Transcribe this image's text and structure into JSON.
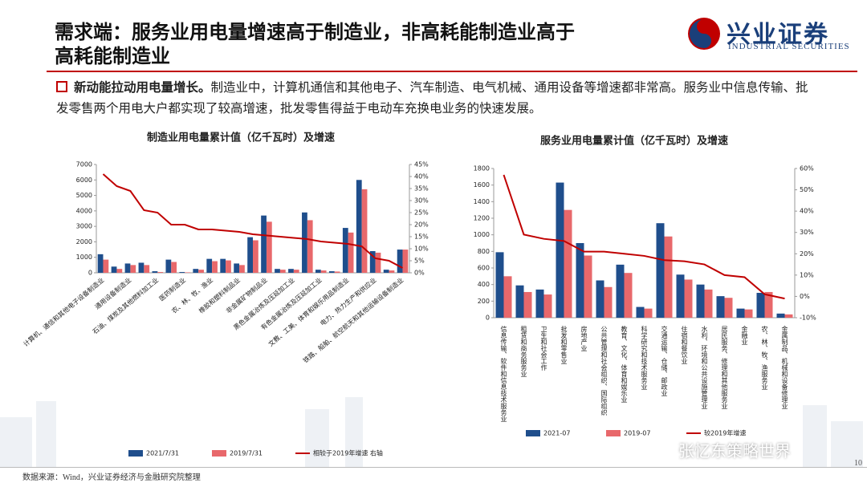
{
  "header": {
    "title": "需求端：服务业用电量增速高于制造业，非高耗能制造业高于高耗能制造业",
    "logo": "兴业证券",
    "logo_sub": "INDUSTRIAL SECURITIES"
  },
  "bullet": {
    "lead": "新动能拉动用电量增长。",
    "text": "制造业中，计算机通信和其他电子、汽车制造、电气机械、通用设备等增速都非常高。服务业中信息传输、批发零售两个用电大户都实现了较高增速，批发零售得益于电动车充换电业务的快速发展。"
  },
  "footer": {
    "source": "数据来源：Wind，兴业证券经济与金融研究院整理",
    "page": "10",
    "watermark": "张忆东策略世界"
  },
  "chart_data": [
    {
      "type": "bar_line",
      "title": "制造业用电量累计值（亿千瓦时）及增速",
      "categories": [
        "计算机、通信和其他电子设备制造业",
        null,
        "通用设备制造业",
        null,
        "石油、煤炭及其他燃料加工业",
        null,
        "医药制造业",
        null,
        "农、林、牧、渔业",
        null,
        "橡胶和塑料制品业",
        null,
        "非金属矿物制品业",
        null,
        "黑色金属冶炼及压延加工业",
        null,
        "有色金属冶炼及压延加工业",
        null,
        "文教、工美、体育和娱乐用品制造业",
        null,
        "电力、热力生产和供应业",
        null,
        "铁路、船舶、航空航天和其他运输设备制造业"
      ],
      "series": [
        {
          "name": "2021/7/31",
          "color": "#1f4e8c",
          "kind": "bar",
          "values": [
            1200,
            400,
            600,
            650,
            100,
            850,
            50,
            250,
            900,
            900,
            600,
            2300,
            3700,
            250,
            250,
            3900,
            200,
            100,
            2900,
            6000,
            1400,
            200,
            1500
          ]
        },
        {
          "name": "2019/7/31",
          "color": "#e8686b",
          "kind": "bar",
          "values": [
            850,
            250,
            500,
            500,
            50,
            700,
            30,
            200,
            750,
            800,
            500,
            2100,
            3300,
            200,
            200,
            3400,
            150,
            80,
            2600,
            5400,
            1300,
            150,
            1500
          ]
        },
        {
          "name": "相较于2019年增速 右轴",
          "color": "#c00000",
          "kind": "line",
          "axis": "y2",
          "values": [
            41,
            36,
            34,
            26,
            25,
            20,
            20,
            18,
            18,
            17.5,
            17,
            16,
            15.5,
            15,
            14.5,
            14,
            13,
            12.5,
            12,
            11,
            6,
            5,
            2
          ]
        }
      ],
      "ylim": [
        0,
        7000
      ],
      "yticks": [
        0,
        1000,
        2000,
        3000,
        4000,
        5000,
        6000,
        7000
      ],
      "y2lim": [
        0,
        45
      ],
      "y2ticks": [
        {
          "value": 0,
          "label": "0%"
        },
        {
          "value": 5,
          "label": "5%"
        },
        {
          "value": 10,
          "label": "10%"
        },
        {
          "value": 15,
          "label": "15%"
        },
        {
          "value": 20,
          "label": "20%"
        },
        {
          "value": 25,
          "label": "25%"
        },
        {
          "value": 30,
          "label": "30%"
        },
        {
          "value": 35,
          "label": "35%"
        },
        {
          "value": 40,
          "label": "40%"
        },
        {
          "value": 45,
          "label": "45%"
        }
      ]
    },
    {
      "type": "bar_line",
      "title": "服务业用电量累计值（亿千瓦时）及增速",
      "categories": [
        "信息传输、软件和信息技术服务业",
        "租赁和商务服务业",
        "卫生和社会工作",
        "批发和零售业",
        "房地产业",
        "公共管理和社会组织、国际组织",
        "教育、文化、体育和娱乐业",
        "科学研究和技术服务业",
        "交通运输、仓储、邮政业",
        "住宿和餐饮业",
        "水利、环境和公共设施管理业",
        "居民服务、修理和其他服务业",
        "金融业",
        "农、林、牧、渔服务业",
        "金属制品、机械和设备修理业"
      ],
      "series": [
        {
          "name": "2021-07",
          "color": "#1f4e8c",
          "kind": "bar",
          "values": [
            790,
            390,
            340,
            1630,
            900,
            450,
            640,
            130,
            1140,
            520,
            400,
            260,
            110,
            300,
            50
          ]
        },
        {
          "name": "2019-07",
          "color": "#e8686b",
          "kind": "bar",
          "values": [
            500,
            310,
            280,
            1300,
            750,
            370,
            540,
            110,
            980,
            460,
            340,
            240,
            100,
            310,
            40
          ]
        },
        {
          "name": "较2019年增速",
          "color": "#c00000",
          "kind": "line",
          "axis": "y2",
          "values": [
            57,
            29,
            27,
            26,
            21,
            21,
            20,
            19,
            17,
            16.5,
            15,
            10,
            9,
            1,
            -1
          ]
        }
      ],
      "ylim": [
        0,
        1800
      ],
      "yticks": [
        0,
        200,
        400,
        600,
        800,
        1000,
        1200,
        1400,
        1600,
        1800
      ],
      "y2lim": [
        -10,
        60
      ],
      "y2ticks": [
        {
          "value": -10,
          "label": "-10%"
        },
        {
          "value": 0,
          "label": "0%"
        },
        {
          "value": 10,
          "label": "10%"
        },
        {
          "value": 20,
          "label": "20%"
        },
        {
          "value": 30,
          "label": "30%"
        },
        {
          "value": 40,
          "label": "40%"
        },
        {
          "value": 50,
          "label": "50%"
        },
        {
          "value": 60,
          "label": "60%"
        }
      ]
    }
  ]
}
